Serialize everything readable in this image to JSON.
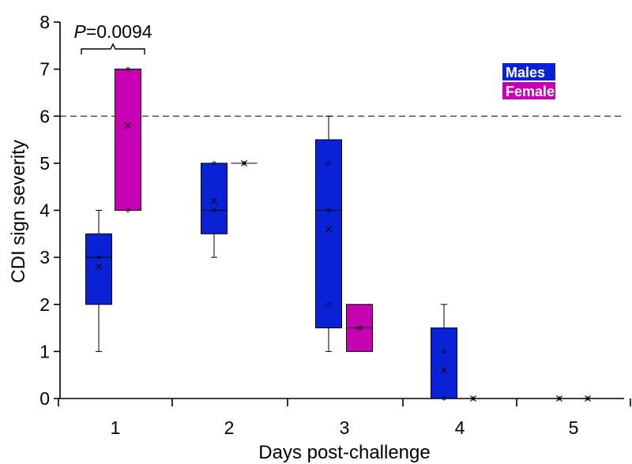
{
  "chart_data": {
    "type": "box",
    "xlabel": "Days post-challenge",
    "ylabel": "CDI sign severity",
    "ylim": [
      0,
      8
    ],
    "yticks": [
      "0",
      "1",
      "2",
      "3",
      "4",
      "5",
      "6",
      "7",
      "8"
    ],
    "categories": [
      "1",
      "2",
      "3",
      "4",
      "5"
    ],
    "threshold_line": 6,
    "legend": [
      {
        "name": "Males",
        "color": "#0a22d6"
      },
      {
        "name": "Females",
        "color": "#c800b4"
      }
    ],
    "annotation": {
      "p_italic": "P",
      "p_value": "=0.0094",
      "between_day": "1"
    },
    "series": [
      {
        "name": "Males",
        "color": "#0a22d6",
        "boxes": [
          {
            "day": "1",
            "min": 1,
            "q1": 2,
            "median": 3,
            "q3": 3.5,
            "max": 4,
            "mean": 2.8,
            "points": [
              3
            ]
          },
          {
            "day": "2",
            "min": 3,
            "q1": 3.5,
            "median": 4,
            "q3": 5,
            "max": 5,
            "mean": 4.2,
            "points": [
              4,
              5
            ]
          },
          {
            "day": "3",
            "min": 1,
            "q1": 1.5,
            "median": 4,
            "q3": 5.5,
            "max": 6,
            "mean": 3.6,
            "points": [
              2,
              4,
              5
            ]
          },
          {
            "day": "4",
            "min": 0,
            "q1": 0,
            "median": 0,
            "q3": 1.5,
            "max": 2,
            "mean": 0.6,
            "points": [
              0,
              1
            ]
          },
          {
            "day": "5",
            "min": 0,
            "q1": 0,
            "median": 0,
            "q3": 0,
            "max": 0,
            "mean": 0,
            "points": [
              0
            ]
          }
        ]
      },
      {
        "name": "Females",
        "color": "#c800b4",
        "boxes": [
          {
            "day": "1",
            "min": 4,
            "q1": 4,
            "median": 7,
            "q3": 7,
            "max": 7,
            "mean": 5.8,
            "points": [
              4,
              7
            ]
          },
          {
            "day": "2",
            "min": 5,
            "q1": 5,
            "median": 5,
            "q3": 5,
            "max": 5,
            "mean": 5,
            "points": [
              5
            ]
          },
          {
            "day": "3",
            "min": 1,
            "q1": 1,
            "median": 1.5,
            "q3": 2,
            "max": 2,
            "mean": 1.5,
            "points": []
          },
          {
            "day": "4",
            "min": 0,
            "q1": 0,
            "median": 0,
            "q3": 0,
            "max": 0,
            "mean": 0,
            "points": [
              0
            ]
          },
          {
            "day": "5",
            "min": 0,
            "q1": 0,
            "median": 0,
            "q3": 0,
            "max": 0,
            "mean": 0,
            "points": [
              0
            ]
          }
        ]
      }
    ]
  }
}
